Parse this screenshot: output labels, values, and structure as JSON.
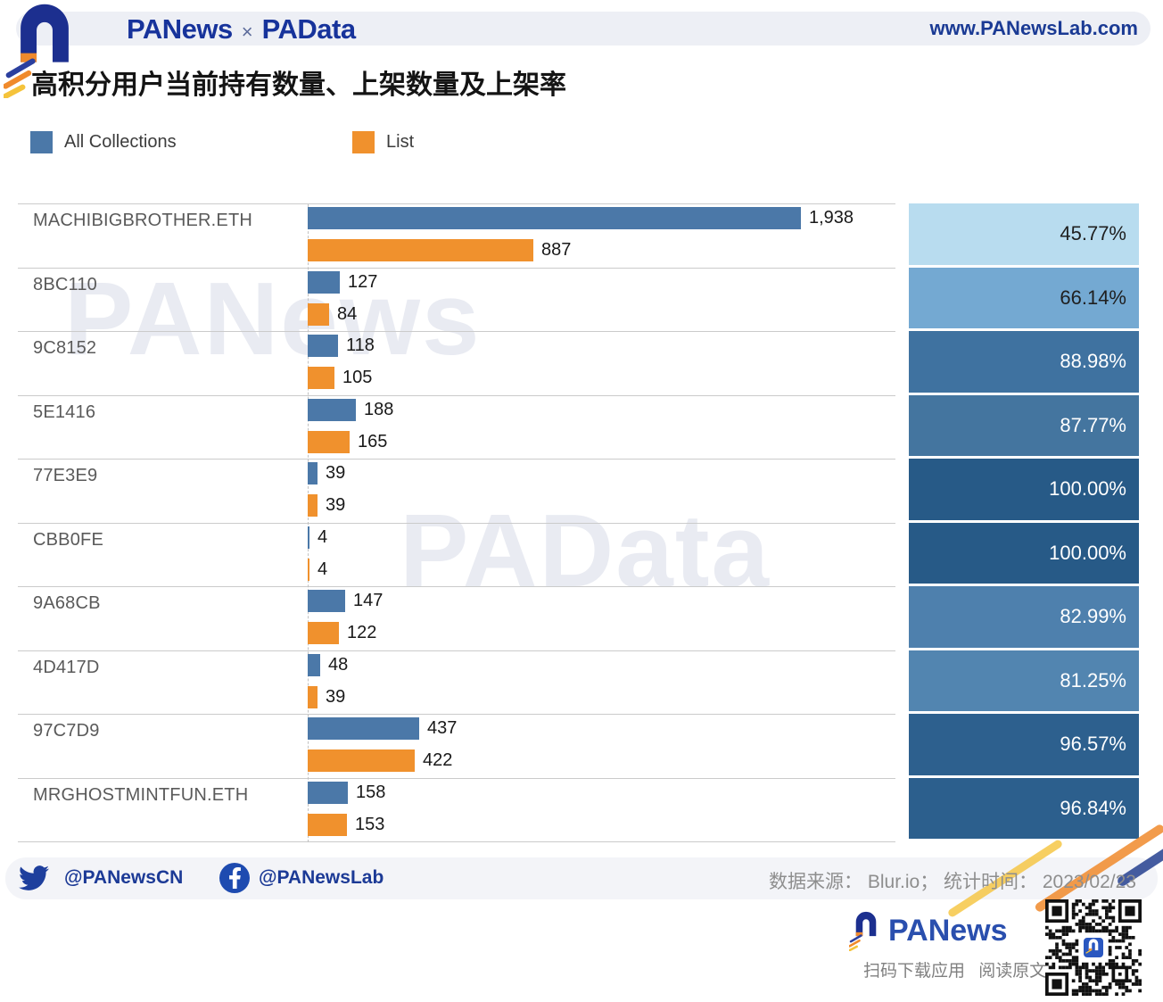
{
  "header": {
    "brand_primary": "PANews",
    "brand_cross": "×",
    "brand_secondary": "PAData",
    "site_url": "www.PANewsLab.com"
  },
  "chart_data": {
    "type": "bar",
    "orientation": "horizontal",
    "title": "高积分用户当前持有数量、上架数量及上架率",
    "categories": [
      "MACHIBIGBROTHER.ETH",
      "8BC110",
      "9C8152",
      "5E1416",
      "77E3E9",
      "CBB0FE",
      "9A68CB",
      "4D417D",
      "97C7D9",
      "MRGHOSTMINTFUN.ETH"
    ],
    "series": [
      {
        "name": "All Collections",
        "color": "#4b78a8",
        "values": [
          1938,
          127,
          118,
          188,
          39,
          4,
          147,
          48,
          437,
          158
        ],
        "labels": [
          "1,938",
          "127",
          "118",
          "188",
          "39",
          "4",
          "147",
          "48",
          "437",
          "158"
        ]
      },
      {
        "name": "List",
        "color": "#f0912d",
        "values": [
          887,
          84,
          105,
          165,
          39,
          4,
          122,
          39,
          422,
          153
        ],
        "labels": [
          "887",
          "84",
          "105",
          "165",
          "39",
          "4",
          "122",
          "39",
          "422",
          "153"
        ]
      }
    ],
    "xmax": 1938,
    "legend_position": "top",
    "grid": "row-separators",
    "rates": [
      {
        "label": "45.77%",
        "bg": "#b8dcef",
        "fg": "#1f1f1f"
      },
      {
        "label": "66.14%",
        "bg": "#74a9d2",
        "fg": "#1f1f1f"
      },
      {
        "label": "88.98%",
        "bg": "#3f72a0",
        "fg": "#ffffff"
      },
      {
        "label": "87.77%",
        "bg": "#44759f",
        "fg": "#ffffff"
      },
      {
        "label": "100.00%",
        "bg": "#275a87",
        "fg": "#ffffff"
      },
      {
        "label": "100.00%",
        "bg": "#275a87",
        "fg": "#ffffff"
      },
      {
        "label": "82.99%",
        "bg": "#4e80ad",
        "fg": "#ffffff"
      },
      {
        "label": "81.25%",
        "bg": "#5285b0",
        "fg": "#ffffff"
      },
      {
        "label": "96.57%",
        "bg": "#2d608e",
        "fg": "#ffffff"
      },
      {
        "label": "96.84%",
        "bg": "#2c5f8d",
        "fg": "#ffffff"
      }
    ]
  },
  "watermarks": {
    "first": "PANews",
    "second": "PAData"
  },
  "footer": {
    "twitter_handle": "@PANewsCN",
    "facebook_handle": "@PANewsLab",
    "source_note": "数据来源： Blur.io； 统计时间： 2023/02/23"
  },
  "promo": {
    "brand": "PANews",
    "caption": "扫码下载应用 阅读原文"
  }
}
